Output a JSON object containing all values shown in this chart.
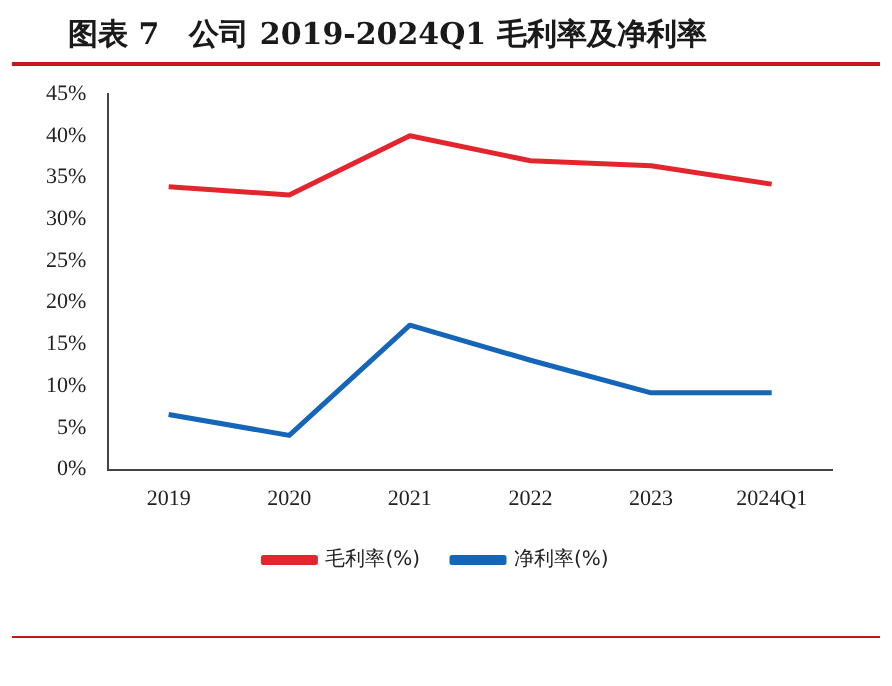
{
  "chart_data": {
    "type": "line",
    "title": "图表 7　公司 2019-2024Q1 毛利率及净利率",
    "categories": [
      "2019",
      "2020",
      "2021",
      "2022",
      "2023",
      "2024Q1"
    ],
    "series": [
      {
        "name": "毛利率(%)",
        "color": "#e3262d",
        "values": [
          33.9,
          32.9,
          40.0,
          37.0,
          36.4,
          34.2
        ]
      },
      {
        "name": "净利率(%)",
        "color": "#1565b8",
        "values": [
          6.6,
          4.1,
          17.3,
          13.1,
          9.2,
          9.2
        ]
      }
    ],
    "ylim": [
      0,
      45
    ],
    "yticks": [
      {
        "value": 0,
        "label": "0%"
      },
      {
        "value": 5,
        "label": "5%"
      },
      {
        "value": 10,
        "label": "10%"
      },
      {
        "value": 15,
        "label": "15%"
      },
      {
        "value": 20,
        "label": "20%"
      },
      {
        "value": 25,
        "label": "25%"
      },
      {
        "value": 30,
        "label": "30%"
      },
      {
        "value": 35,
        "label": "35%"
      },
      {
        "value": 40,
        "label": "40%"
      },
      {
        "value": 45,
        "label": "45%"
      }
    ],
    "grid": false,
    "legend": "bottom",
    "marker": "none",
    "line_style": "solid"
  }
}
